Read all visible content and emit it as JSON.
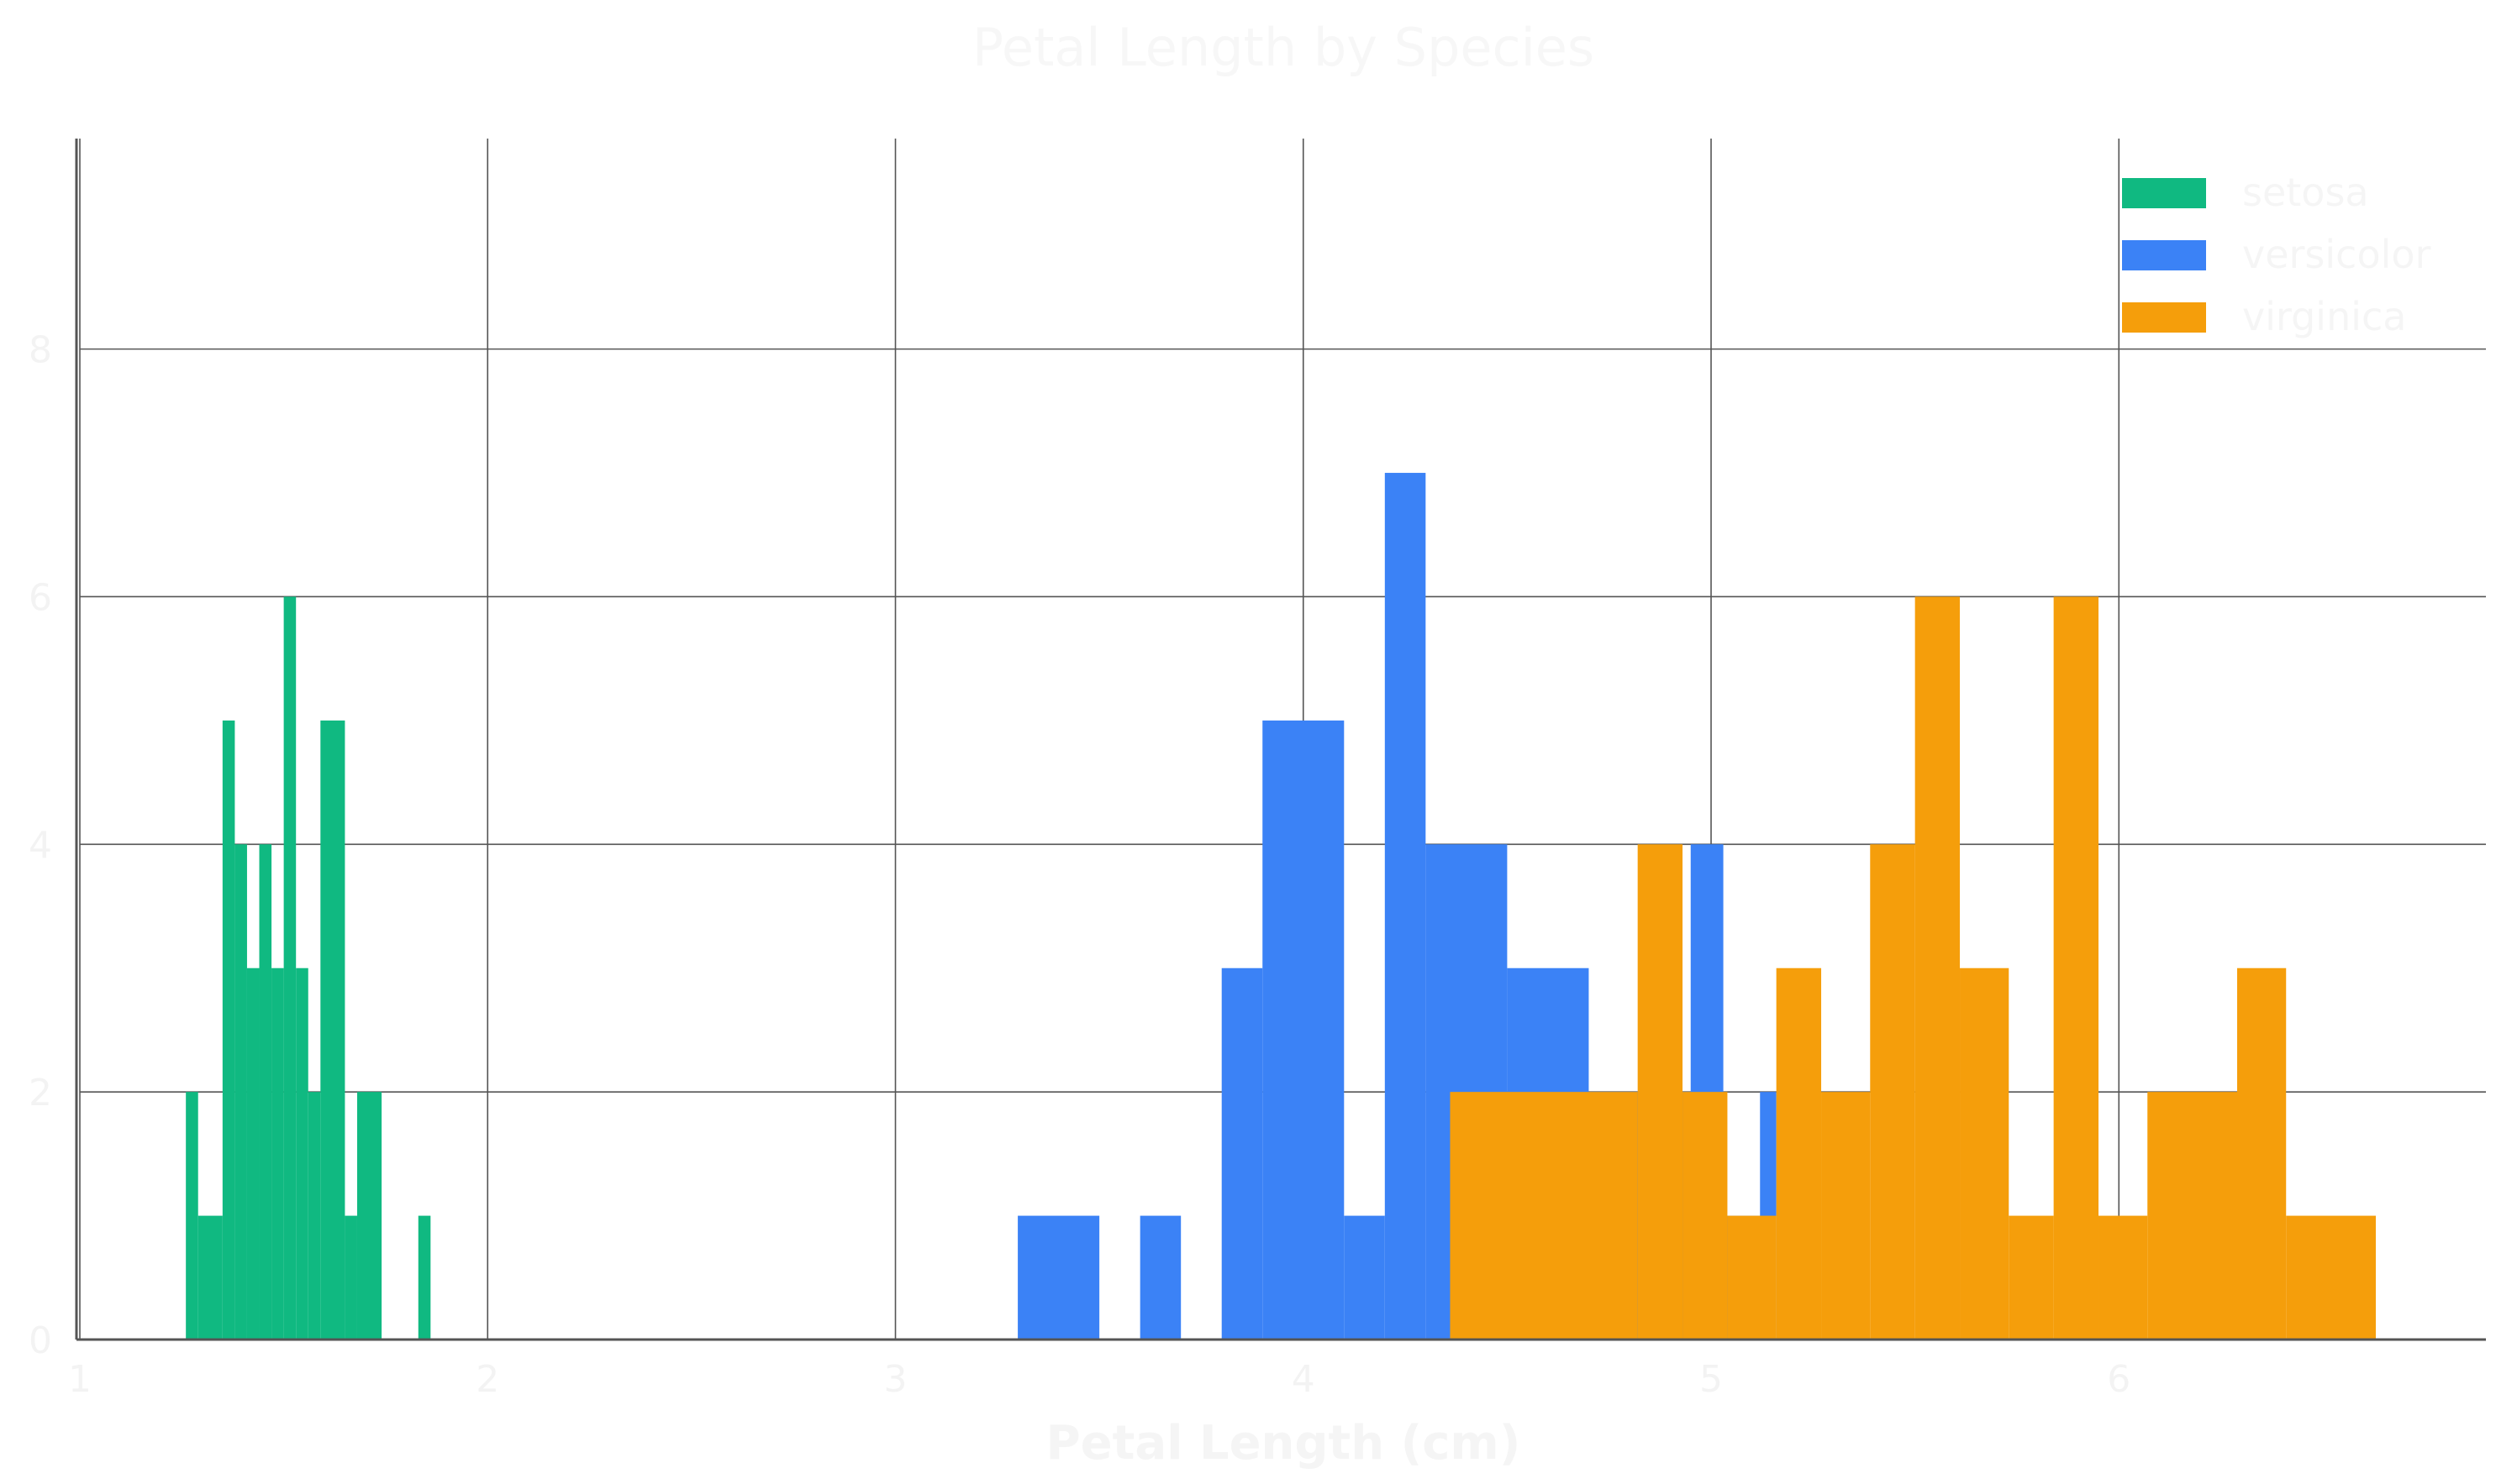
{
  "chart_data": {
    "type": "bar",
    "title": "Petal Length by Species",
    "xlabel": "Petal Length (cm)",
    "ylabel": "",
    "xlim": [
      1,
      6.9
    ],
    "ylim": [
      0,
      9.7
    ],
    "x_ticks": [
      1,
      2,
      3,
      4,
      5,
      6
    ],
    "y_ticks": [
      0,
      2,
      4,
      6,
      8
    ],
    "grid": true,
    "legend_position": "top-right",
    "series": [
      {
        "name": "setosa",
        "color": "#10b981",
        "bins": [
          {
            "x0": 1.26,
            "x1": 1.29,
            "count": 2
          },
          {
            "x0": 1.29,
            "x1": 1.35,
            "count": 1
          },
          {
            "x0": 1.35,
            "x1": 1.38,
            "count": 5
          },
          {
            "x0": 1.38,
            "x1": 1.41,
            "count": 4
          },
          {
            "x0": 1.41,
            "x1": 1.44,
            "count": 3
          },
          {
            "x0": 1.44,
            "x1": 1.47,
            "count": 4
          },
          {
            "x0": 1.47,
            "x1": 1.5,
            "count": 3
          },
          {
            "x0": 1.5,
            "x1": 1.53,
            "count": 6
          },
          {
            "x0": 1.53,
            "x1": 1.56,
            "count": 3
          },
          {
            "x0": 1.56,
            "x1": 1.59,
            "count": 2
          },
          {
            "x0": 1.59,
            "x1": 1.65,
            "count": 5
          },
          {
            "x0": 1.65,
            "x1": 1.68,
            "count": 1
          },
          {
            "x0": 1.68,
            "x1": 1.74,
            "count": 2
          },
          {
            "x0": 1.83,
            "x1": 1.86,
            "count": 1
          }
        ]
      },
      {
        "name": "versicolor",
        "color": "#3b82f6",
        "bins": [
          {
            "x0": 3.3,
            "x1": 3.5,
            "count": 1
          },
          {
            "x0": 3.6,
            "x1": 3.7,
            "count": 1
          },
          {
            "x0": 3.8,
            "x1": 3.9,
            "count": 3
          },
          {
            "x0": 3.9,
            "x1": 4.1,
            "count": 5
          },
          {
            "x0": 4.1,
            "x1": 4.2,
            "count": 1
          },
          {
            "x0": 4.2,
            "x1": 4.3,
            "count": 7
          },
          {
            "x0": 4.3,
            "x1": 4.5,
            "count": 4
          },
          {
            "x0": 4.5,
            "x1": 4.7,
            "count": 3
          },
          {
            "x0": 4.7,
            "x1": 4.8,
            "count": 2
          },
          {
            "x0": 4.8,
            "x1": 4.95,
            "count": 2
          },
          {
            "x0": 4.95,
            "x1": 5.03,
            "count": 4
          },
          {
            "x0": 5.03,
            "x1": 5.12,
            "count": 1
          },
          {
            "x0": 5.12,
            "x1": 5.16,
            "count": 2
          }
        ]
      },
      {
        "name": "virginica",
        "color": "#f59e0b",
        "bins": [
          {
            "x0": 4.36,
            "x1": 4.82,
            "count": 2
          },
          {
            "x0": 4.82,
            "x1": 4.93,
            "count": 4
          },
          {
            "x0": 4.93,
            "x1": 5.04,
            "count": 2
          },
          {
            "x0": 5.04,
            "x1": 5.16,
            "count": 1
          },
          {
            "x0": 5.16,
            "x1": 5.27,
            "count": 3
          },
          {
            "x0": 5.27,
            "x1": 5.39,
            "count": 2
          },
          {
            "x0": 5.39,
            "x1": 5.5,
            "count": 4
          },
          {
            "x0": 5.5,
            "x1": 5.61,
            "count": 6
          },
          {
            "x0": 5.61,
            "x1": 5.73,
            "count": 3
          },
          {
            "x0": 5.73,
            "x1": 5.84,
            "count": 1
          },
          {
            "x0": 5.84,
            "x1": 5.95,
            "count": 6
          },
          {
            "x0": 5.95,
            "x1": 6.07,
            "count": 1
          },
          {
            "x0": 6.07,
            "x1": 6.29,
            "count": 2
          },
          {
            "x0": 6.29,
            "x1": 6.41,
            "count": 3
          },
          {
            "x0": 6.41,
            "x1": 6.63,
            "count": 1
          }
        ]
      }
    ]
  }
}
